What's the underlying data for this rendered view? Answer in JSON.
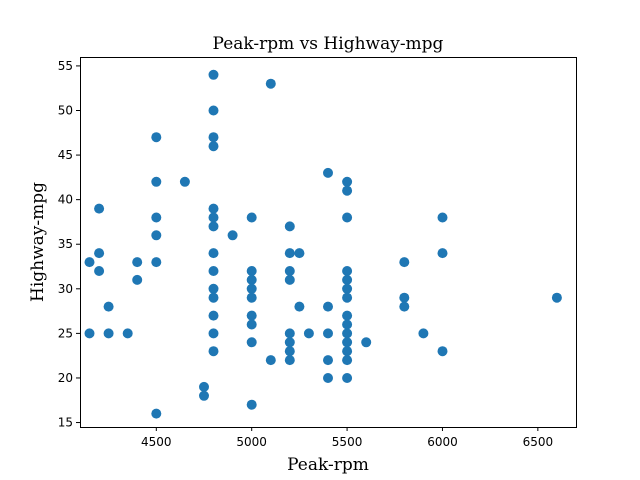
{
  "chart_data": {
    "type": "scatter",
    "title": "Peak-rpm vs Highway-mpg",
    "xlabel": "Peak-rpm",
    "ylabel": "Highway-mpg",
    "xlim": [
      4100,
      6700
    ],
    "ylim": [
      14.5,
      56
    ],
    "xticks": [
      4500,
      5000,
      5500,
      6000,
      6500
    ],
    "yticks": [
      15,
      20,
      25,
      30,
      35,
      40,
      45,
      50,
      55
    ],
    "grid": false,
    "legend": "none",
    "marker_color": "#1f77b4",
    "series": [
      {
        "points": [
          [
            4150,
            33
          ],
          [
            4150,
            25
          ],
          [
            4200,
            39
          ],
          [
            4200,
            34
          ],
          [
            4200,
            32
          ],
          [
            4250,
            28
          ],
          [
            4250,
            25
          ],
          [
            4350,
            25
          ],
          [
            4400,
            33
          ],
          [
            4400,
            31
          ],
          [
            4500,
            47
          ],
          [
            4500,
            42
          ],
          [
            4500,
            38
          ],
          [
            4500,
            36
          ],
          [
            4500,
            33
          ],
          [
            4500,
            16
          ],
          [
            4650,
            42
          ],
          [
            4750,
            19
          ],
          [
            4750,
            18
          ],
          [
            4800,
            54
          ],
          [
            4800,
            50
          ],
          [
            4800,
            47
          ],
          [
            4800,
            46
          ],
          [
            4800,
            39
          ],
          [
            4800,
            38
          ],
          [
            4800,
            37
          ],
          [
            4800,
            34
          ],
          [
            4800,
            32
          ],
          [
            4800,
            30
          ],
          [
            4800,
            29
          ],
          [
            4800,
            27
          ],
          [
            4800,
            25
          ],
          [
            4800,
            23
          ],
          [
            4900,
            36
          ],
          [
            5000,
            38
          ],
          [
            5000,
            32
          ],
          [
            5000,
            31
          ],
          [
            5000,
            30
          ],
          [
            5000,
            29
          ],
          [
            5000,
            27
          ],
          [
            5000,
            26
          ],
          [
            5000,
            24
          ],
          [
            5000,
            17
          ],
          [
            5100,
            53
          ],
          [
            5100,
            22
          ],
          [
            5200,
            37
          ],
          [
            5200,
            34
          ],
          [
            5200,
            32
          ],
          [
            5200,
            31
          ],
          [
            5200,
            25
          ],
          [
            5200,
            24
          ],
          [
            5200,
            23
          ],
          [
            5200,
            22
          ],
          [
            5250,
            34
          ],
          [
            5250,
            28
          ],
          [
            5300,
            25
          ],
          [
            5400,
            43
          ],
          [
            5400,
            28
          ],
          [
            5400,
            25
          ],
          [
            5400,
            22
          ],
          [
            5400,
            20
          ],
          [
            5500,
            42
          ],
          [
            5500,
            41
          ],
          [
            5500,
            38
          ],
          [
            5500,
            32
          ],
          [
            5500,
            31
          ],
          [
            5500,
            30
          ],
          [
            5500,
            29
          ],
          [
            5500,
            27
          ],
          [
            5500,
            26
          ],
          [
            5500,
            25
          ],
          [
            5500,
            24
          ],
          [
            5500,
            23
          ],
          [
            5500,
            22
          ],
          [
            5500,
            20
          ],
          [
            5600,
            24
          ],
          [
            5800,
            33
          ],
          [
            5800,
            29
          ],
          [
            5800,
            28
          ],
          [
            5900,
            25
          ],
          [
            6000,
            38
          ],
          [
            6000,
            34
          ],
          [
            6000,
            23
          ],
          [
            6600,
            29
          ]
        ]
      }
    ]
  }
}
